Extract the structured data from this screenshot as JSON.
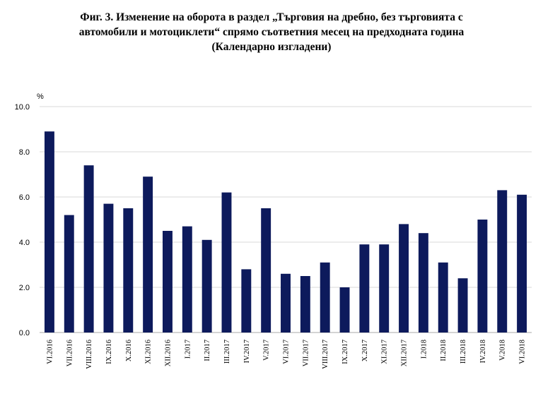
{
  "title_lines": [
    "Фиг. 3. Изменение на оборота в раздел „Търговия на дребно, без търговията с",
    "автомобили и мотоциклети“ спрямо съответния месец на предходната година",
    "(Календарно изгладени)"
  ],
  "chart_data": {
    "type": "bar",
    "title": "Фиг. 3. Изменение на оборота в раздел „Търговия на дребно, без търговията с автомобили и мотоциклети“ спрямо съответния месец на предходната година (Календарно изгладени)",
    "ylabel": "%",
    "xlabel": "",
    "ylim": [
      0,
      10
    ],
    "yticks": [
      "0.0",
      "2.0",
      "4.0",
      "6.0",
      "8.0",
      "10.0"
    ],
    "grid": true,
    "legend": "none",
    "bar_color": "#0d1a5c",
    "categories": [
      "VI.2016",
      "VII.2016",
      "VIII.2016",
      "IX.2016",
      "X.2016",
      "XI.2016",
      "XII.2016",
      "I.2017",
      "II.2017",
      "III.2017",
      "IV.2017",
      "V.2017",
      "VI.2017",
      "VII.2017",
      "VIII.2017",
      "IX.2017",
      "X.2017",
      "XI.2017",
      "XII.2017",
      "I.2018",
      "II.2018",
      "III.2018",
      "IV.2018",
      "V.2018",
      "VI.2018"
    ],
    "values": [
      8.9,
      5.2,
      7.4,
      5.7,
      5.5,
      6.9,
      4.5,
      4.7,
      4.1,
      6.2,
      2.8,
      5.5,
      2.6,
      2.5,
      3.1,
      2.0,
      3.9,
      3.9,
      4.8,
      4.4,
      3.1,
      2.4,
      5.0,
      6.3,
      6.1
    ]
  }
}
